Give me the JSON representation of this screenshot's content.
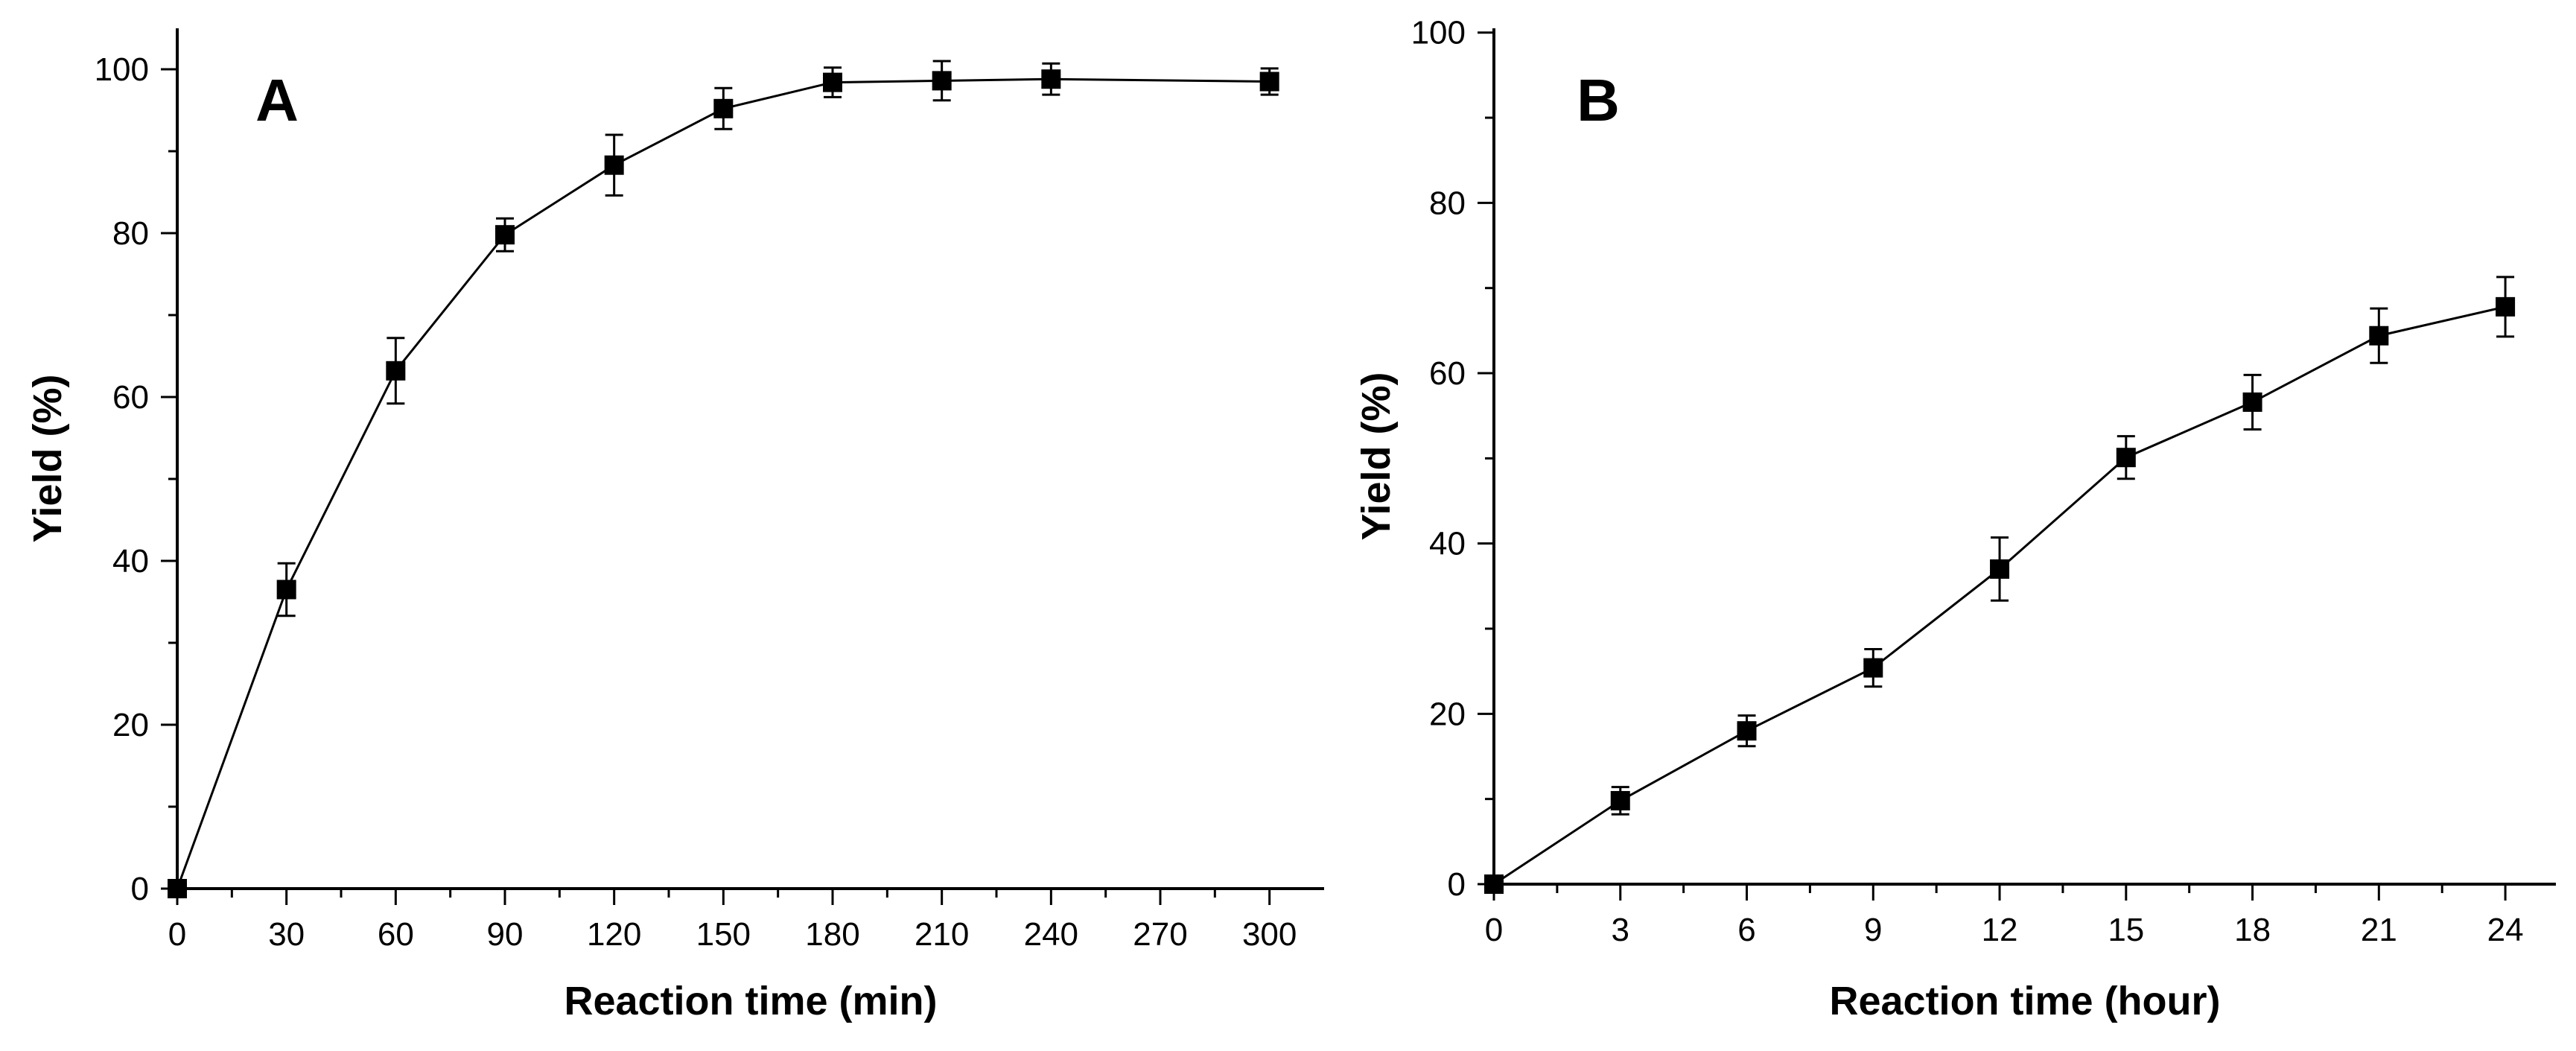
{
  "chart_data": [
    {
      "type": "line",
      "panel_label": "A",
      "title": "",
      "xlabel": "Reaction time (min)",
      "ylabel": "Yield (%)",
      "xlim": [
        0,
        315
      ],
      "ylim": [
        0,
        105
      ],
      "x_ticks": [
        0,
        30,
        60,
        90,
        120,
        150,
        180,
        210,
        240,
        270,
        300
      ],
      "y_ticks": [
        0,
        20,
        40,
        60,
        80,
        100
      ],
      "grid": false,
      "marker": "square",
      "color": "#000000",
      "series": [
        {
          "name": "Yield",
          "x": [
            0,
            30,
            60,
            90,
            120,
            150,
            180,
            210,
            240,
            300
          ],
          "y": [
            0,
            36.5,
            63.2,
            79.8,
            88.3,
            95.2,
            98.4,
            98.6,
            98.8,
            98.5
          ],
          "error": [
            0,
            3.2,
            4.0,
            2.0,
            3.7,
            2.5,
            1.8,
            2.4,
            1.9,
            1.6
          ]
        }
      ]
    },
    {
      "type": "line",
      "panel_label": "B",
      "title": "",
      "xlabel": "Reaction time (hour)",
      "ylabel": "Yield (%)",
      "xlim": [
        0,
        25.2
      ],
      "ylim": [
        0,
        100.5
      ],
      "x_ticks": [
        0,
        3,
        6,
        9,
        12,
        15,
        18,
        21,
        24
      ],
      "y_ticks": [
        0,
        20,
        40,
        60,
        80,
        100
      ],
      "grid": false,
      "marker": "square",
      "color": "#000000",
      "series": [
        {
          "name": "Yield",
          "x": [
            0,
            3,
            6,
            9,
            12,
            15,
            18,
            21,
            24
          ],
          "y": [
            0,
            9.8,
            18.0,
            25.4,
            37.0,
            50.1,
            56.6,
            64.4,
            67.8
          ],
          "error": [
            0,
            1.6,
            1.8,
            2.2,
            3.7,
            2.5,
            3.2,
            3.2,
            3.5
          ]
        }
      ]
    }
  ]
}
